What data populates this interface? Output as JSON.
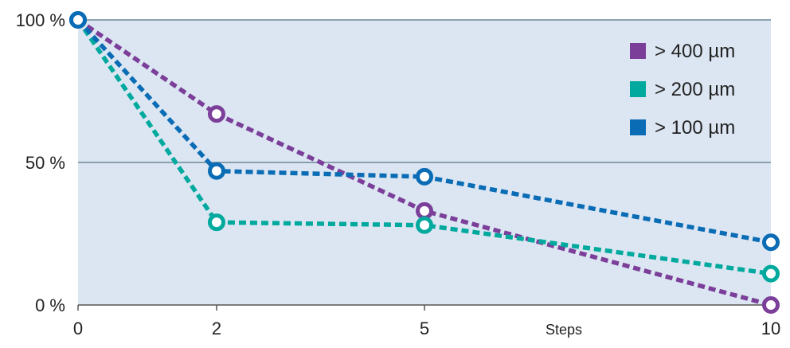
{
  "chart_data": {
    "type": "line",
    "title": "",
    "xlabel": "Steps",
    "ylabel": "",
    "x": [
      0,
      2,
      5,
      10
    ],
    "xticks": [
      "0",
      "2",
      "5",
      "10"
    ],
    "yticks": [
      "0 %",
      "50 %",
      "100 %"
    ],
    "ytick_values": [
      0,
      50,
      100
    ],
    "xlim": [
      0,
      10
    ],
    "ylim": [
      0,
      100
    ],
    "grid": "horizontal",
    "legend_position": "top-right",
    "series": [
      {
        "name": "> 400 µm",
        "color": "#7b3f9a",
        "values": [
          100,
          67,
          33,
          0
        ]
      },
      {
        "name": "> 200 µm",
        "color": "#00a99d",
        "values": [
          100,
          29,
          28,
          11
        ]
      },
      {
        "name": "> 100 µm",
        "color": "#0a6cb5",
        "values": [
          100,
          47,
          45,
          22
        ]
      }
    ]
  },
  "colors": {
    "plot_background": "#dce6f2",
    "grid": "#6f8598",
    "axis": "#555555"
  }
}
